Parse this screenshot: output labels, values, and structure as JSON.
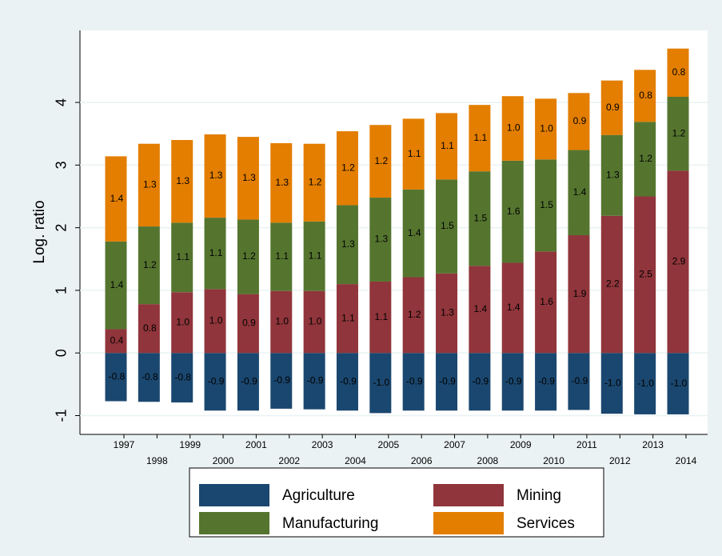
{
  "chart_data": {
    "type": "stacked_bar",
    "y_label": "Log. ratio",
    "categories": [
      "1997",
      "1998",
      "1999",
      "2000",
      "2001",
      "2002",
      "2003",
      "2004",
      "2005",
      "2006",
      "2007",
      "2008",
      "2009",
      "2010",
      "2011",
      "2012",
      "2013",
      "2014"
    ],
    "series": [
      {
        "name": "Agriculture",
        "color": "#1a476f",
        "values": [
          -0.77,
          -0.78,
          -0.79,
          -0.92,
          -0.92,
          -0.89,
          -0.9,
          -0.92,
          -0.96,
          -0.92,
          -0.92,
          -0.92,
          -0.92,
          -0.92,
          -0.91,
          -0.97,
          -0.98,
          -0.98
        ],
        "value_labels": [
          "-0.8",
          "-0.8",
          "-0.8",
          "-0.9",
          "-0.9",
          "-0.9",
          "-0.9",
          "-0.9",
          "-1.0",
          "-0.9",
          "-0.9",
          "-0.9",
          "-0.9",
          "-0.9",
          "-0.9",
          "-1.0",
          "-1.0",
          "-1.0"
        ]
      },
      {
        "name": "Mining",
        "color": "#90353b",
        "values": [
          0.38,
          0.78,
          0.97,
          1.02,
          0.94,
          0.99,
          0.99,
          1.1,
          1.14,
          1.21,
          1.27,
          1.39,
          1.44,
          1.62,
          1.88,
          2.19,
          2.5,
          2.91
        ],
        "value_labels": [
          "0.4",
          "0.8",
          "1.0",
          "1.0",
          "0.9",
          "1.0",
          "1.0",
          "1.1",
          "1.1",
          "1.2",
          "1.3",
          "1.4",
          "1.4",
          "1.6",
          "1.9",
          "2.2",
          "2.5",
          "2.9"
        ]
      },
      {
        "name": "Manufacturing",
        "color": "#55752f",
        "values": [
          1.4,
          1.24,
          1.11,
          1.14,
          1.19,
          1.09,
          1.11,
          1.26,
          1.34,
          1.4,
          1.5,
          1.51,
          1.63,
          1.47,
          1.36,
          1.29,
          1.19,
          1.18
        ],
        "value_labels": [
          "1.4",
          "1.2",
          "1.1",
          "1.1",
          "1.2",
          "1.1",
          "1.1",
          "1.3",
          "1.3",
          "1.4",
          "1.5",
          "1.5",
          "1.6",
          "1.5",
          "1.4",
          "1.3",
          "1.2",
          "1.2"
        ]
      },
      {
        "name": "Services",
        "color": "#e37e00",
        "values": [
          1.36,
          1.32,
          1.32,
          1.33,
          1.32,
          1.27,
          1.24,
          1.18,
          1.16,
          1.13,
          1.06,
          1.06,
          1.03,
          0.97,
          0.91,
          0.87,
          0.83,
          0.77
        ],
        "value_labels": [
          "1.4",
          "1.3",
          "1.3",
          "1.3",
          "1.3",
          "1.3",
          "1.2",
          "1.2",
          "1.2",
          "1.1",
          "1.1",
          "1.1",
          "1.0",
          "1.0",
          "0.9",
          "0.9",
          "0.8",
          "0.8"
        ]
      }
    ],
    "ylim": [
      -1.3,
      5.15
    ],
    "yticks": [
      -1,
      0,
      1,
      2,
      3,
      4
    ],
    "grid": true
  }
}
